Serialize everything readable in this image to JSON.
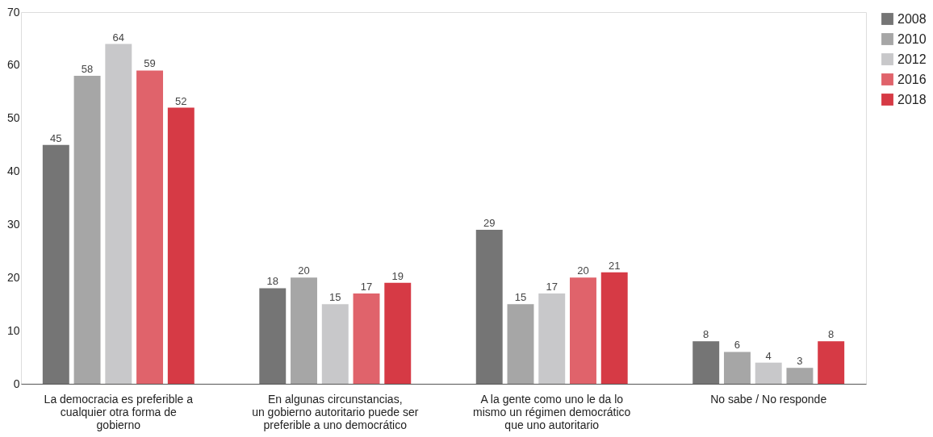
{
  "chart_data": {
    "type": "bar",
    "categories": [
      "La democracia es preferible a\ncualquier otra forma de\ngobierno",
      "En algunas circunstancias,\nun gobierno autoritario puede ser\npreferible a uno democrático",
      "A la gente como uno le da lo\nmismo un régimen democrático\nque uno autoritario",
      "No sabe / No responde"
    ],
    "series": [
      {
        "name": "2008",
        "color": "#757575",
        "values": [
          45,
          18,
          29,
          8
        ]
      },
      {
        "name": "2010",
        "color": "#a6a6a6",
        "values": [
          58,
          20,
          15,
          6
        ]
      },
      {
        "name": "2012",
        "color": "#c8c8ca",
        "values": [
          64,
          15,
          17,
          4
        ]
      },
      {
        "name": "2016",
        "color": "#e0636b",
        "colors": [
          "#e0636b",
          "#e0636b",
          "#e0636b",
          "#a6a6a6"
        ],
        "values": [
          59,
          17,
          20,
          3
        ]
      },
      {
        "name": "2018",
        "color": "#d63a45",
        "values": [
          52,
          19,
          21,
          8
        ]
      }
    ],
    "ylim": [
      0,
      70
    ],
    "yticks": [
      0,
      10,
      20,
      30,
      40,
      50,
      60,
      70
    ],
    "data_labels": true,
    "grid": false,
    "legend": "top right"
  }
}
